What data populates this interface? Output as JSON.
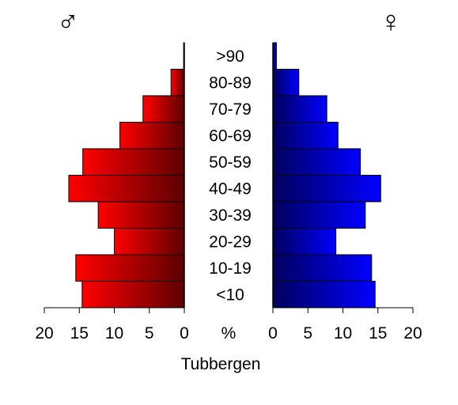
{
  "chart_data": {
    "type": "bar",
    "orientation": "population-pyramid",
    "title": "Tubbergen",
    "unit_label": "%",
    "categories": [
      "<10",
      "10-19",
      "20-29",
      "30-39",
      "40-49",
      "50-59",
      "60-69",
      "70-79",
      "80-89",
      ">90"
    ],
    "series": [
      {
        "name": "♂",
        "side": "left",
        "values": [
          14.6,
          15.5,
          10.0,
          12.3,
          16.5,
          14.5,
          9.2,
          5.9,
          1.9,
          0.1
        ],
        "color_light": "#ff0000",
        "color_dark": "#5c0000"
      },
      {
        "name": "♀",
        "side": "right",
        "values": [
          14.6,
          14.1,
          9.0,
          13.2,
          15.4,
          12.5,
          9.3,
          7.7,
          3.7,
          0.5
        ],
        "color_light": "#0000ff",
        "color_dark": "#00005c"
      }
    ],
    "xlim": [
      0,
      20
    ],
    "ticks": [
      0,
      5,
      10,
      15,
      20
    ],
    "legend": "none",
    "grid": false
  }
}
